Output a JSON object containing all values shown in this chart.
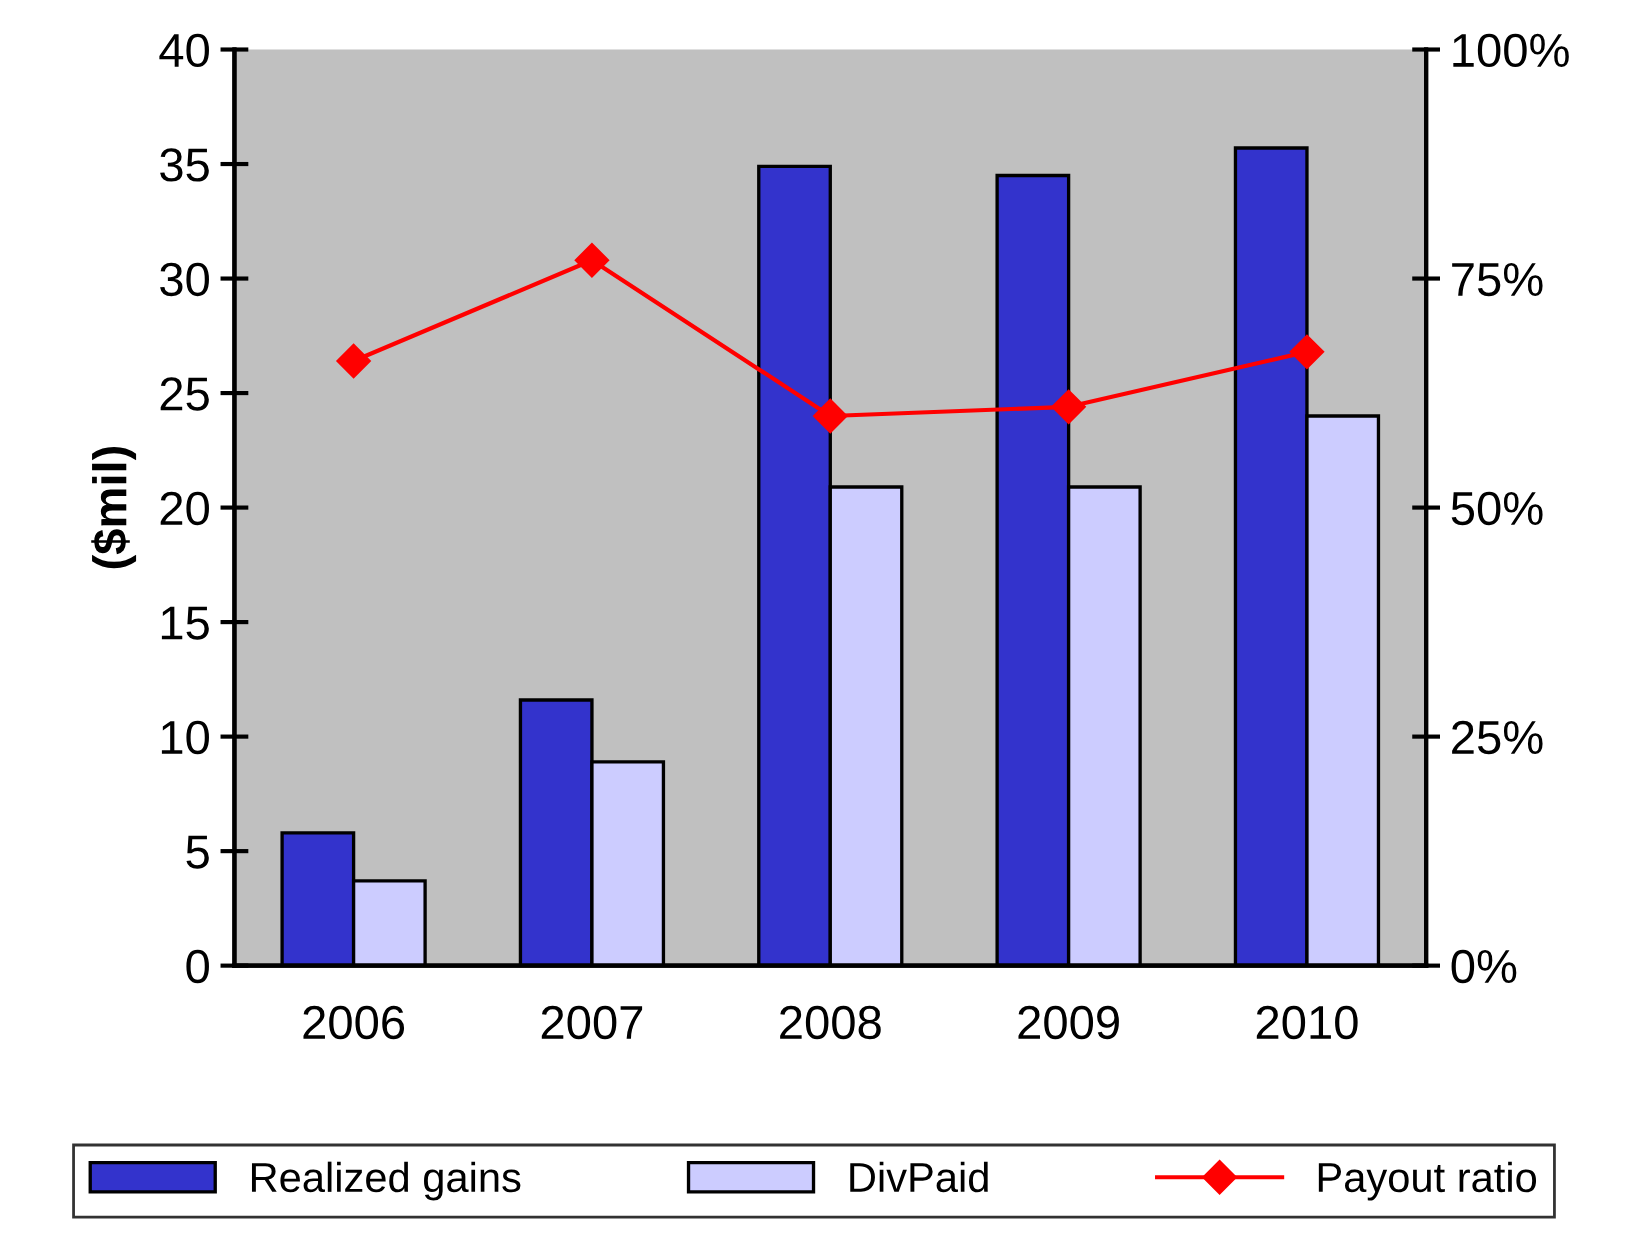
{
  "chart_data": {
    "type": "bar",
    "ylabel": "($mil)",
    "categories": [
      "2006",
      "2007",
      "2008",
      "2009",
      "2010"
    ],
    "series": [
      {
        "name": "Realized gains",
        "color": "#3333cc",
        "values": [
          5.8,
          11.6,
          34.9,
          34.5,
          35.7
        ]
      },
      {
        "name": "DivPaid",
        "color": "#ccccff",
        "values": [
          3.7,
          8.9,
          20.9,
          20.9,
          24.0
        ]
      },
      {
        "name": "Payout ratio",
        "color": "#ff0000",
        "type": "line",
        "axis": "y2",
        "marker": "diamond",
        "values": [
          66,
          77,
          60,
          61,
          67
        ]
      }
    ],
    "ylim": [
      0,
      40
    ],
    "yticks": [
      0,
      5,
      10,
      15,
      20,
      25,
      30,
      35,
      40
    ],
    "y2lim": [
      0,
      100
    ],
    "y2ticks": [
      {
        "value": 0,
        "label": "0%"
      },
      {
        "value": 25,
        "label": "25%"
      },
      {
        "value": 50,
        "label": "50%"
      },
      {
        "value": 75,
        "label": "75%"
      },
      {
        "value": 100,
        "label": "100%"
      }
    ],
    "grid": false,
    "legend": "bottom"
  }
}
